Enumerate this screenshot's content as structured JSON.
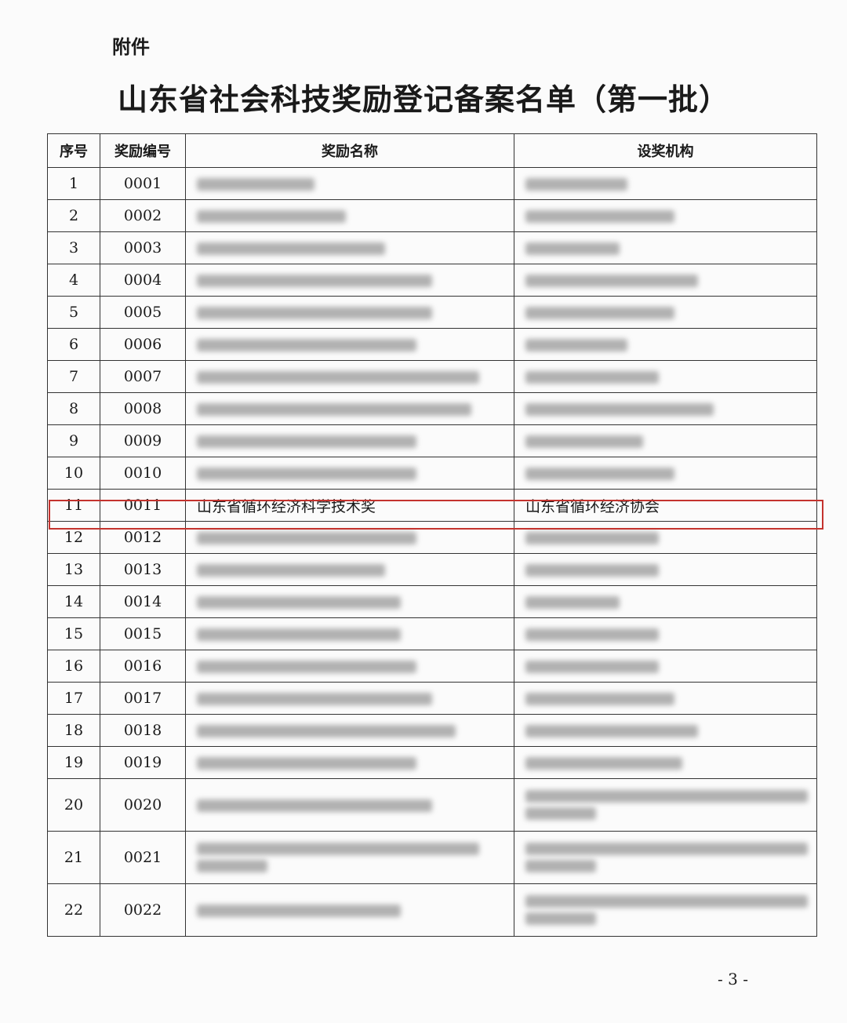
{
  "header": {
    "attachment_label": "附件",
    "title": "山东省社会科技奖励登记备案名单（第一批）"
  },
  "table": {
    "columns": [
      "序号",
      "奖励编号",
      "奖励名称",
      "设奖机构"
    ],
    "rows": [
      {
        "no": "1",
        "code": "0001"
      },
      {
        "no": "2",
        "code": "0002"
      },
      {
        "no": "3",
        "code": "0003"
      },
      {
        "no": "4",
        "code": "0004"
      },
      {
        "no": "5",
        "code": "0005"
      },
      {
        "no": "6",
        "code": "0006"
      },
      {
        "no": "7",
        "code": "0007"
      },
      {
        "no": "8",
        "code": "0008"
      },
      {
        "no": "9",
        "code": "0009"
      },
      {
        "no": "10",
        "code": "0010"
      },
      {
        "no": "11",
        "code": "0011",
        "name": "山东省循环经济科学技术奖",
        "org": "山东省循环经济协会",
        "highlighted": true
      },
      {
        "no": "12",
        "code": "0012"
      },
      {
        "no": "13",
        "code": "0013"
      },
      {
        "no": "14",
        "code": "0014"
      },
      {
        "no": "15",
        "code": "0015"
      },
      {
        "no": "16",
        "code": "0016"
      },
      {
        "no": "17",
        "code": "0017"
      },
      {
        "no": "18",
        "code": "0018"
      },
      {
        "no": "19",
        "code": "0019"
      },
      {
        "no": "20",
        "code": "0020"
      },
      {
        "no": "21",
        "code": "0021"
      },
      {
        "no": "22",
        "code": "0022"
      }
    ]
  },
  "highlight_color": "#c4332e",
  "footer": {
    "page_number": "- 3 -"
  }
}
